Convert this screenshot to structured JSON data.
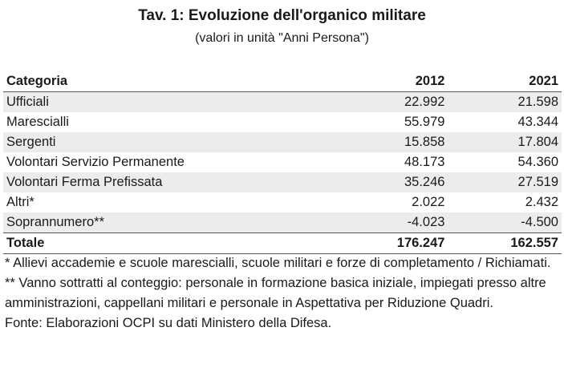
{
  "title": "Tav. 1: Evoluzione dell'organico militare",
  "subtitle": "(valori in unità \"Anni Persona\")",
  "table": {
    "headers": [
      "Categoria",
      "2012",
      "2021"
    ],
    "rows": [
      [
        "Ufficiali",
        "22.992",
        "21.598"
      ],
      [
        "Marescialli",
        "55.979",
        "43.344"
      ],
      [
        "Sergenti",
        "15.858",
        "17.804"
      ],
      [
        "Volontari Servizio Permanente",
        "48.173",
        "54.360"
      ],
      [
        "Volontari Ferma Prefissata",
        "35.246",
        "27.519"
      ],
      [
        "Altri*",
        "2.022",
        "2.432"
      ],
      [
        "Soprannumero**",
        "-4.023",
        "-4.500"
      ]
    ],
    "total": [
      "Totale",
      "176.247",
      "162.557"
    ]
  },
  "notes": [
    "* Allievi accademie e scuole marescialli, scuole militari e forze di completamento / Richiamati.",
    "** Vanno sottratti al conteggio: personale in formazione basica iniziale, impiegati presso altre amministrazioni, cappellani militari e personale in Aspettativa per Riduzione Quadri.",
    "Fonte: Elaborazioni OCPI su dati Ministero della Difesa."
  ]
}
